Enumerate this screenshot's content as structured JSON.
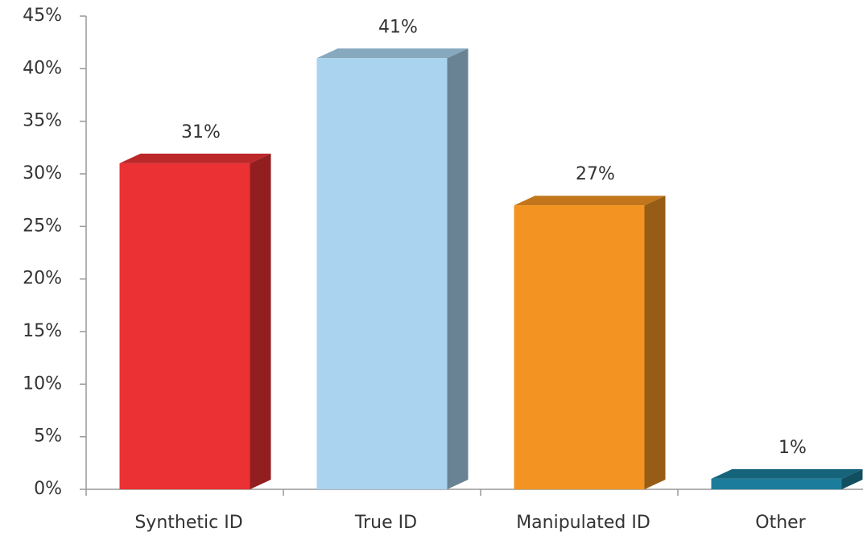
{
  "chart_data": {
    "type": "bar3d",
    "categories": [
      "Synthetic ID",
      "True ID",
      "Manipulated ID",
      "Other"
    ],
    "values": [
      31,
      41,
      27,
      1
    ],
    "value_labels": [
      "31%",
      "41%",
      "27%",
      "1%"
    ],
    "colors": [
      "#eb3134",
      "#a9d3ef",
      "#f39422",
      "#1b7d9b"
    ],
    "ylim": [
      0,
      45
    ],
    "yticks": [
      {
        "value": 0,
        "label": "0%"
      },
      {
        "value": 5,
        "label": "5%"
      },
      {
        "value": 10,
        "label": "10%"
      },
      {
        "value": 15,
        "label": "15%"
      },
      {
        "value": 20,
        "label": "20%"
      },
      {
        "value": 25,
        "label": "25%"
      },
      {
        "value": 30,
        "label": "30%"
      },
      {
        "value": 35,
        "label": "35%"
      },
      {
        "value": 40,
        "label": "40%"
      },
      {
        "value": 45,
        "label": "45%"
      }
    ],
    "grid": false
  }
}
